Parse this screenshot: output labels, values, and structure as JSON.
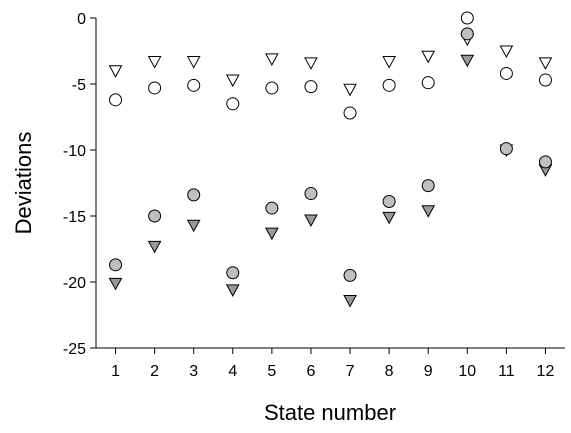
{
  "chart_data": {
    "type": "scatter",
    "title": "",
    "xlabel": "State number",
    "ylabel": "Deviations",
    "xlim": [
      0.5,
      12.5
    ],
    "ylim": [
      -25,
      0
    ],
    "x_ticks": [
      1,
      2,
      3,
      4,
      5,
      6,
      7,
      8,
      9,
      10,
      11,
      12
    ],
    "y_ticks": [
      0,
      -5,
      -10,
      -15,
      -20,
      -25
    ],
    "grid": false,
    "legend": "none",
    "series": [
      {
        "marker": "open-triangle-down",
        "color": "#ffffff",
        "x": [
          1,
          2,
          3,
          4,
          5,
          6,
          7,
          8,
          9,
          10,
          11,
          12
        ],
        "y": [
          -4.0,
          -3.3,
          -3.3,
          -4.7,
          -3.1,
          -3.4,
          -5.4,
          -3.3,
          -2.9,
          -1.6,
          -2.5,
          -3.4
        ]
      },
      {
        "marker": "open-circle",
        "color": "#ffffff",
        "x": [
          1,
          2,
          3,
          4,
          5,
          6,
          7,
          8,
          9,
          10,
          11,
          12
        ],
        "y": [
          -6.2,
          -5.3,
          -5.1,
          -6.5,
          -5.3,
          -5.2,
          -7.2,
          -5.1,
          -4.9,
          0.0,
          -4.2,
          -4.7
        ]
      },
      {
        "marker": "filled-triangle-down",
        "color": "#999999",
        "x": [
          1,
          2,
          3,
          4,
          5,
          6,
          7,
          8,
          9,
          10,
          11,
          12
        ],
        "y": [
          -20.1,
          -17.3,
          -15.7,
          -20.6,
          -16.3,
          -15.3,
          -21.4,
          -15.1,
          -14.6,
          -3.2,
          -10.0,
          -11.5
        ]
      },
      {
        "marker": "filled-circle",
        "color": "#bfbfbf",
        "x": [
          1,
          2,
          3,
          4,
          5,
          6,
          7,
          8,
          9,
          10,
          11,
          12
        ],
        "y": [
          -18.7,
          -15.0,
          -13.4,
          -19.3,
          -14.4,
          -13.3,
          -19.5,
          -13.9,
          -12.7,
          -1.2,
          -9.9,
          -10.9
        ]
      }
    ]
  }
}
